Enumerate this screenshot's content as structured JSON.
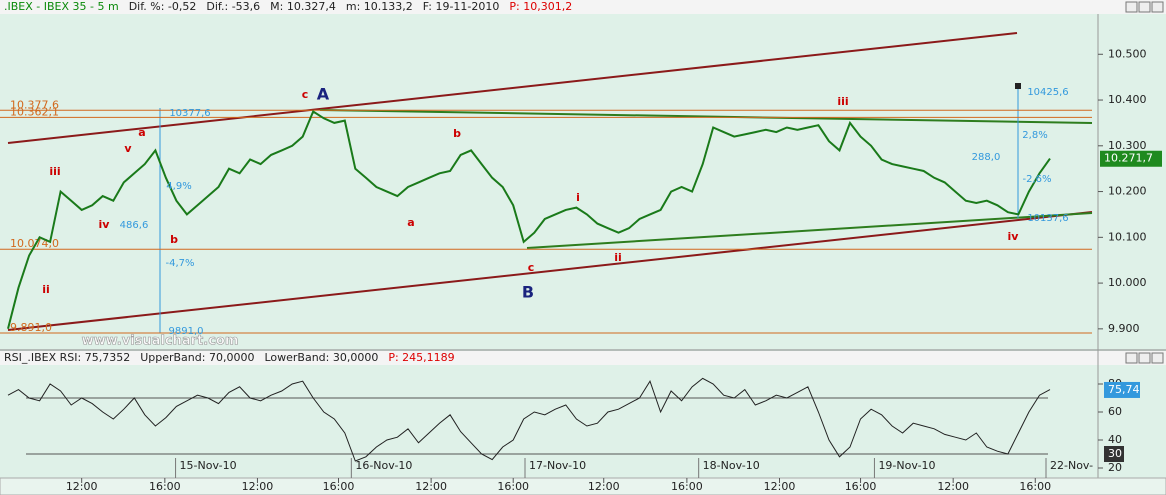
{
  "chart_data": [
    {
      "type": "line",
      "header": [
        ".IBEX - IBEX 35 -  5 m",
        "Dif. %: -0,52",
        "Dif.: -53,6",
        "M: 10.327,4",
        "m: 10.133,2",
        "F: 19-11-2010",
        "P: 10,301,2"
      ],
      "series": [
        {
          "color": "#1a7a1a",
          "values": [
            9900,
            9990,
            10060,
            10100,
            10090,
            10200,
            10180,
            10160,
            10170,
            10190,
            10180,
            10220,
            10240,
            10260,
            10290,
            10230,
            10180,
            10150,
            10170,
            10190,
            10210,
            10250,
            10240,
            10270,
            10260,
            10280,
            10290,
            10300,
            10320,
            10375,
            10360,
            10350,
            10355,
            10250,
            10230,
            10210,
            10200,
            10190,
            10210,
            10220,
            10230,
            10240,
            10245,
            10280,
            10290,
            10260,
            10230,
            10210,
            10170,
            10090,
            10110,
            10140,
            10150,
            10160,
            10165,
            10150,
            10130,
            10120,
            10110,
            10120,
            10140,
            10150,
            10160,
            10200,
            10210,
            10200,
            10260,
            10340,
            10330,
            10320,
            10325,
            10330,
            10335,
            10330,
            10340,
            10335,
            10340,
            10345,
            10310,
            10290,
            10350,
            10320,
            10300,
            10270,
            10260,
            10255,
            10250,
            10245,
            10230,
            10220,
            10200,
            10180,
            10175,
            10180,
            10170,
            10155,
            10150,
            10200,
            10240,
            10272
          ]
        }
      ],
      "ylim": [
        9880,
        10588
      ],
      "yticks": [
        {
          "value": 9900,
          "label": "9.900"
        },
        {
          "value": 10000,
          "label": "10.000"
        },
        {
          "value": 10100,
          "label": "10.100"
        },
        {
          "value": 10200,
          "label": "10.200"
        },
        {
          "value": 10300,
          "label": "10.300"
        },
        {
          "value": 10400,
          "label": "10.400"
        },
        {
          "value": 10500,
          "label": "10.500"
        }
      ],
      "last_price": {
        "value": 10271.7,
        "label": "10.271,7"
      },
      "levels": [
        {
          "value": 10377.6,
          "label": "10.377,6"
        },
        {
          "value": 10362.1,
          "label": "10.362,1"
        },
        {
          "value": 10074.0,
          "label": "10.074,0"
        },
        {
          "value": 9891.0,
          "label": "9.891,0"
        }
      ],
      "annotations": [
        "A",
        "B",
        "c",
        "b",
        "a",
        "c",
        "iii",
        "ii",
        "iv",
        "iii",
        "v",
        "a",
        "b",
        "i",
        "ii",
        "iv",
        "10377,6",
        "486,6",
        "-4,7%",
        "9891,0",
        "4,9%",
        "10425,6",
        "2,8%",
        "288,0",
        "-2,6%",
        "10137,6",
        "www.visualchart.com"
      ]
    },
    {
      "type": "line",
      "header": [
        "RSI_.IBEX RSI: 75,7352",
        "UpperBand: 70,0000",
        "LowerBand: 30,0000",
        "P: 245,1189"
      ],
      "series": [
        {
          "color": "#222222",
          "values": [
            72,
            76,
            70,
            68,
            80,
            75,
            65,
            70,
            66,
            60,
            55,
            62,
            70,
            58,
            50,
            56,
            64,
            68,
            72,
            70,
            66,
            74,
            78,
            70,
            68,
            72,
            75,
            80,
            82,
            70,
            60,
            55,
            45,
            25,
            28,
            35,
            40,
            42,
            48,
            38,
            45,
            52,
            58,
            46,
            38,
            30,
            26,
            35,
            40,
            55,
            60,
            58,
            62,
            65,
            55,
            50,
            52,
            60,
            62,
            66,
            70,
            82,
            60,
            75,
            68,
            78,
            84,
            80,
            72,
            70,
            76,
            65,
            68,
            72,
            70,
            74,
            78,
            60,
            40,
            28,
            35,
            55,
            62,
            58,
            50,
            45,
            52,
            50,
            48,
            44,
            42,
            40,
            45,
            35,
            32,
            30,
            45,
            60,
            72,
            76
          ]
        }
      ],
      "ylim": [
        18,
        89
      ],
      "yticks": [
        20,
        40,
        60,
        80
      ],
      "bands": [
        30,
        70
      ],
      "last_value": {
        "value": 75.74,
        "label": "75,74"
      },
      "band_tag": 30,
      "xlim": [
        0,
        99
      ],
      "xticks": [
        {
          "value": 7.0,
          "label": "12:00"
        },
        {
          "value": 14.9,
          "label": "16:00"
        },
        {
          "value": 23.7,
          "label": "12:00"
        },
        {
          "value": 31.4,
          "label": "16:00"
        },
        {
          "value": 40.2,
          "label": "12:00"
        },
        {
          "value": 48.0,
          "label": "16:00"
        },
        {
          "value": 56.6,
          "label": "12:00"
        },
        {
          "value": 64.5,
          "label": "16:00"
        },
        {
          "value": 73.3,
          "label": "12:00"
        },
        {
          "value": 81.0,
          "label": "16:00"
        },
        {
          "value": 89.8,
          "label": "12:00"
        },
        {
          "value": 97.6,
          "label": "16:00"
        }
      ],
      "date_ticks": [
        {
          "value": 16.3,
          "label": "15-Nov-10"
        },
        {
          "value": 33.0,
          "label": "16-Nov-10"
        },
        {
          "value": 49.5,
          "label": "17-Nov-10"
        },
        {
          "value": 66.0,
          "label": "18-Nov-10"
        },
        {
          "value": 82.7,
          "label": "19-Nov-10"
        },
        {
          "value": 99.0,
          "label": "22-Nov-"
        }
      ]
    }
  ]
}
